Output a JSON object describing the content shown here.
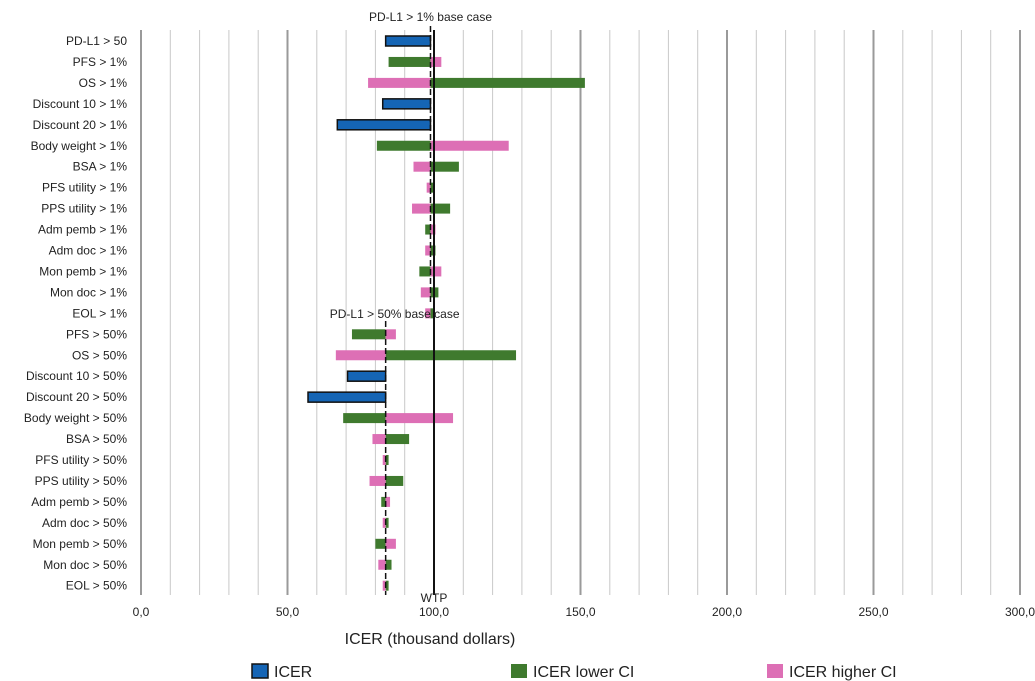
{
  "chart_data": {
    "type": "bar",
    "xlabel": "ICER (thousand dollars)",
    "xlim": [
      0,
      300
    ],
    "x_ticks": [
      {
        "value": 0,
        "label": "0,0"
      },
      {
        "value": 50,
        "label": "50,0"
      },
      {
        "value": 100,
        "label": "100,0"
      },
      {
        "value": 150,
        "label": "150,0"
      },
      {
        "value": 200,
        "label": "200,0"
      },
      {
        "value": 250,
        "label": "250,0"
      },
      {
        "value": 300,
        "label": "300,0"
      }
    ],
    "minor_grid_step": 10,
    "grid": true,
    "legend": {
      "position": "bottom",
      "items": [
        {
          "key": "icer",
          "label": "ICER",
          "color": "#1565b5"
        },
        {
          "key": "lower",
          "label": "ICER lower CI",
          "color": "#3f7a2e"
        },
        {
          "key": "higher",
          "label": "ICER higher CI",
          "color": "#dd6fb5"
        }
      ]
    },
    "reference_lines": [
      {
        "name": "pdl1-1-base",
        "value": 98.8,
        "label": "PD-L1 > 1% base case",
        "style": "dashed"
      },
      {
        "name": "wtp",
        "value": 100,
        "label": "WTP",
        "style": "solid"
      },
      {
        "name": "pdl1-50-base",
        "value": 83.5,
        "label": "PD-L1 > 50% base case",
        "style": "dashed"
      }
    ],
    "categories": [
      {
        "label": "PD-L1 > 50",
        "base": 98.8,
        "icer": 83.5
      },
      {
        "label": "PFS > 1%",
        "base": 98.8,
        "lower": 84.5,
        "higher": 102.5
      },
      {
        "label": "OS > 1%",
        "base": 98.8,
        "lower": 151.5,
        "higher": 77.5
      },
      {
        "label": "Discount 10 > 1%",
        "base": 98.8,
        "icer": 82.5
      },
      {
        "label": "Discount 20 > 1%",
        "base": 98.8,
        "icer": 67.0
      },
      {
        "label": "Body weight > 1%",
        "base": 98.8,
        "lower": 80.5,
        "higher": 125.5
      },
      {
        "label": "BSA > 1%",
        "base": 98.8,
        "lower": 108.5,
        "higher": 93.0
      },
      {
        "label": "PFS utility > 1%",
        "base": 98.8,
        "lower": 100.0,
        "higher": 97.5
      },
      {
        "label": "PPS utility > 1%",
        "base": 98.8,
        "lower": 105.5,
        "higher": 92.5
      },
      {
        "label": "Adm pemb > 1%",
        "base": 98.8,
        "lower": 97.0,
        "higher": 100.5
      },
      {
        "label": "Adm doc > 1%",
        "base": 98.8,
        "lower": 100.5,
        "higher": 97.0
      },
      {
        "label": "Mon pemb > 1%",
        "base": 98.8,
        "lower": 95.0,
        "higher": 102.5
      },
      {
        "label": "Mon doc > 1%",
        "base": 98.8,
        "lower": 101.5,
        "higher": 95.5
      },
      {
        "label": "EOL > 1%",
        "base": 98.8,
        "lower": 100.0,
        "higher": 97.0
      },
      {
        "label": "PFS > 50%",
        "base": 83.5,
        "lower": 72.0,
        "higher": 87.0
      },
      {
        "label": "OS > 50%",
        "base": 83.5,
        "lower": 128.0,
        "higher": 66.5
      },
      {
        "label": "Discount 10 > 50%",
        "base": 83.5,
        "icer": 70.5
      },
      {
        "label": "Discount 20 > 50%",
        "base": 83.5,
        "icer": 57.0
      },
      {
        "label": "Body weight > 50%",
        "base": 83.5,
        "lower": 69.0,
        "higher": 106.5
      },
      {
        "label": "BSA > 50%",
        "base": 83.5,
        "lower": 91.5,
        "higher": 79.0
      },
      {
        "label": "PFS utility > 50%",
        "base": 83.5,
        "lower": 84.5,
        "higher": 82.5
      },
      {
        "label": "PPS utility > 50%",
        "base": 83.5,
        "lower": 89.5,
        "higher": 78.0
      },
      {
        "label": "Adm pemb > 50%",
        "base": 83.5,
        "lower": 82.0,
        "higher": 85.0
      },
      {
        "label": "Adm doc > 50%",
        "base": 83.5,
        "lower": 84.5,
        "higher": 82.5
      },
      {
        "label": "Mon pemb > 50%",
        "base": 83.5,
        "lower": 80.0,
        "higher": 87.0
      },
      {
        "label": "Mon doc > 50%",
        "base": 83.5,
        "lower": 85.5,
        "higher": 81.0
      },
      {
        "label": "EOL > 50%",
        "base": 83.5,
        "lower": 84.5,
        "higher": 82.5
      }
    ]
  }
}
